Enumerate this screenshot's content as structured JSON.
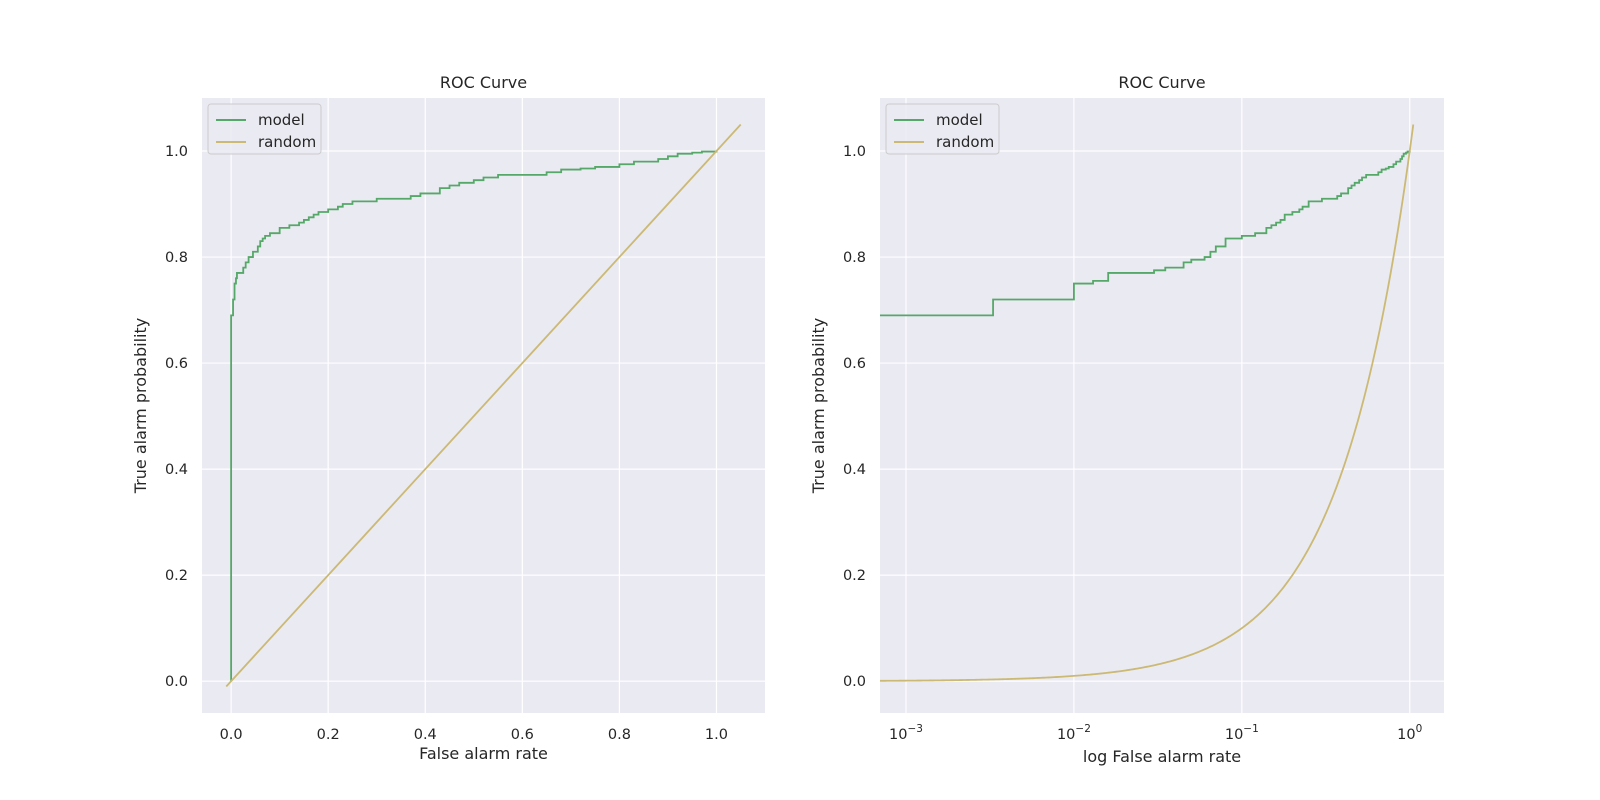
{
  "chart_data": [
    {
      "type": "line",
      "title": "ROC Curve",
      "xlabel": "False alarm rate",
      "ylabel": "True alarm probability",
      "xscale": "linear",
      "xlim": [
        -0.06,
        1.1
      ],
      "ylim": [
        -0.06,
        1.1
      ],
      "xticks": [
        0.0,
        0.2,
        0.4,
        0.6,
        0.8,
        1.0
      ],
      "xtick_labels": [
        "0.0",
        "0.2",
        "0.4",
        "0.6",
        "0.8",
        "1.0"
      ],
      "yticks": [
        0.0,
        0.2,
        0.4,
        0.6,
        0.8,
        1.0
      ],
      "ytick_labels": [
        "0.0",
        "0.2",
        "0.4",
        "0.6",
        "0.8",
        "1.0"
      ],
      "grid": true,
      "legend": {
        "location": "upper-left",
        "entries": [
          "model",
          "random"
        ]
      },
      "series": [
        {
          "name": "model",
          "color": "#55a868",
          "drawstyle": "steps",
          "x": [
            0.0,
            0.0,
            0.004,
            0.007,
            0.01,
            0.012,
            0.015,
            0.025,
            0.03,
            0.036,
            0.045,
            0.055,
            0.06,
            0.065,
            0.07,
            0.08,
            0.1,
            0.12,
            0.14,
            0.15,
            0.16,
            0.17,
            0.18,
            0.2,
            0.22,
            0.23,
            0.25,
            0.3,
            0.35,
            0.37,
            0.39,
            0.43,
            0.45,
            0.47,
            0.5,
            0.52,
            0.55,
            0.6,
            0.65,
            0.68,
            0.72,
            0.75,
            0.8,
            0.83,
            0.88,
            0.9,
            0.92,
            0.95,
            0.97,
            1.0
          ],
          "y": [
            0.0,
            0.69,
            0.72,
            0.75,
            0.76,
            0.77,
            0.77,
            0.78,
            0.79,
            0.8,
            0.81,
            0.82,
            0.83,
            0.835,
            0.84,
            0.845,
            0.855,
            0.86,
            0.865,
            0.87,
            0.875,
            0.88,
            0.885,
            0.89,
            0.895,
            0.9,
            0.905,
            0.91,
            0.91,
            0.915,
            0.92,
            0.93,
            0.935,
            0.94,
            0.945,
            0.95,
            0.955,
            0.955,
            0.96,
            0.965,
            0.967,
            0.97,
            0.975,
            0.98,
            0.985,
            0.99,
            0.995,
            0.997,
            0.999,
            1.0
          ]
        },
        {
          "name": "random",
          "color": "#ccb974",
          "drawstyle": "line",
          "x": [
            -0.01,
            1.05
          ],
          "y": [
            -0.01,
            1.05
          ]
        }
      ]
    },
    {
      "type": "line",
      "title": "ROC Curve",
      "xlabel": "log False alarm rate",
      "ylabel": "True alarm probability",
      "xscale": "log",
      "xlim": [
        0.0007,
        1.6
      ],
      "ylim": [
        -0.06,
        1.1
      ],
      "xticks": [
        0.001,
        0.01,
        0.1,
        1
      ],
      "xtick_labels": [
        "10",
        "10",
        "10",
        "10"
      ],
      "xtick_exponents": [
        "−3",
        "−2",
        "−1",
        "0"
      ],
      "yticks": [
        0.0,
        0.2,
        0.4,
        0.6,
        0.8,
        1.0
      ],
      "ytick_labels": [
        "0.0",
        "0.2",
        "0.4",
        "0.6",
        "0.8",
        "1.0"
      ],
      "grid": true,
      "legend": {
        "location": "upper-left",
        "entries": [
          "model",
          "random"
        ]
      },
      "series": [
        {
          "name": "model",
          "color": "#55a868",
          "drawstyle": "steps",
          "x": [
            0.0007,
            0.0033,
            0.01,
            0.013,
            0.016,
            0.03,
            0.035,
            0.045,
            0.05,
            0.06,
            0.065,
            0.07,
            0.08,
            0.1,
            0.12,
            0.14,
            0.15,
            0.16,
            0.17,
            0.18,
            0.2,
            0.22,
            0.23,
            0.25,
            0.3,
            0.35,
            0.37,
            0.39,
            0.43,
            0.45,
            0.47,
            0.5,
            0.52,
            0.55,
            0.6,
            0.65,
            0.68,
            0.72,
            0.75,
            0.8,
            0.83,
            0.88,
            0.9,
            0.92,
            0.95,
            0.97,
            1.0
          ],
          "y": [
            0.69,
            0.72,
            0.75,
            0.755,
            0.77,
            0.775,
            0.78,
            0.79,
            0.795,
            0.8,
            0.81,
            0.82,
            0.835,
            0.84,
            0.845,
            0.855,
            0.86,
            0.865,
            0.87,
            0.88,
            0.885,
            0.89,
            0.895,
            0.905,
            0.91,
            0.91,
            0.915,
            0.92,
            0.93,
            0.935,
            0.94,
            0.945,
            0.95,
            0.955,
            0.955,
            0.96,
            0.965,
            0.967,
            0.97,
            0.975,
            0.98,
            0.985,
            0.99,
            0.995,
            0.997,
            0.999,
            1.0
          ]
        },
        {
          "name": "random",
          "color": "#ccb974",
          "drawstyle": "line",
          "function": "y = x",
          "x_range": [
            0.0007,
            1.05
          ]
        }
      ]
    }
  ]
}
